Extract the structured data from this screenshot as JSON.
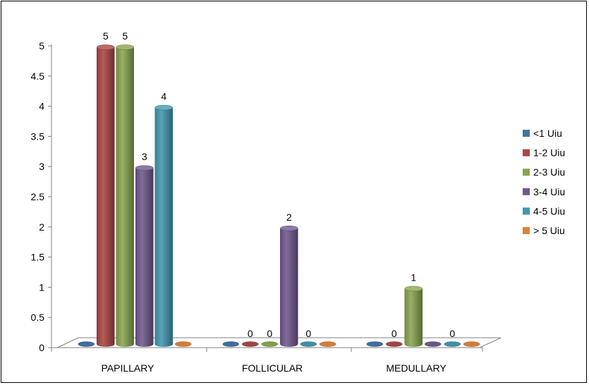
{
  "chart_data": {
    "type": "bar",
    "style": "3d-cylinder",
    "categories": [
      "PAPILLARY",
      "FOLLICULAR",
      "MEDULLARY"
    ],
    "series": [
      {
        "name": "<1 Uiu",
        "color": "#4572A7",
        "values": [
          0,
          0,
          0
        ],
        "labels": [
          null,
          null,
          null
        ]
      },
      {
        "name": "1-2 Uiu",
        "color": "#AA4643",
        "values": [
          5,
          0,
          0
        ],
        "labels": [
          5,
          0,
          0
        ]
      },
      {
        "name": "2-3 Uiu",
        "color": "#89A54E",
        "values": [
          5,
          0,
          1
        ],
        "labels": [
          5,
          0,
          1
        ]
      },
      {
        "name": "3-4 Uiu",
        "color": "#71588F",
        "values": [
          3,
          2,
          0
        ],
        "labels": [
          3,
          2,
          null
        ]
      },
      {
        "name": "4-5 Uiu",
        "color": "#4198AF",
        "values": [
          4,
          0,
          0
        ],
        "labels": [
          4,
          0,
          0
        ]
      },
      {
        "name": "> 5 Uiu",
        "color": "#DB843D",
        "values": [
          0,
          0,
          0
        ],
        "labels": [
          null,
          null,
          null
        ]
      }
    ],
    "yticks": [
      "0",
      "0.5",
      "1",
      "1.5",
      "2",
      "2.5",
      "3",
      "3.5",
      "4",
      "4.5",
      "5"
    ],
    "ylim": [
      0,
      5
    ],
    "legend_position": "right",
    "grid": false
  }
}
